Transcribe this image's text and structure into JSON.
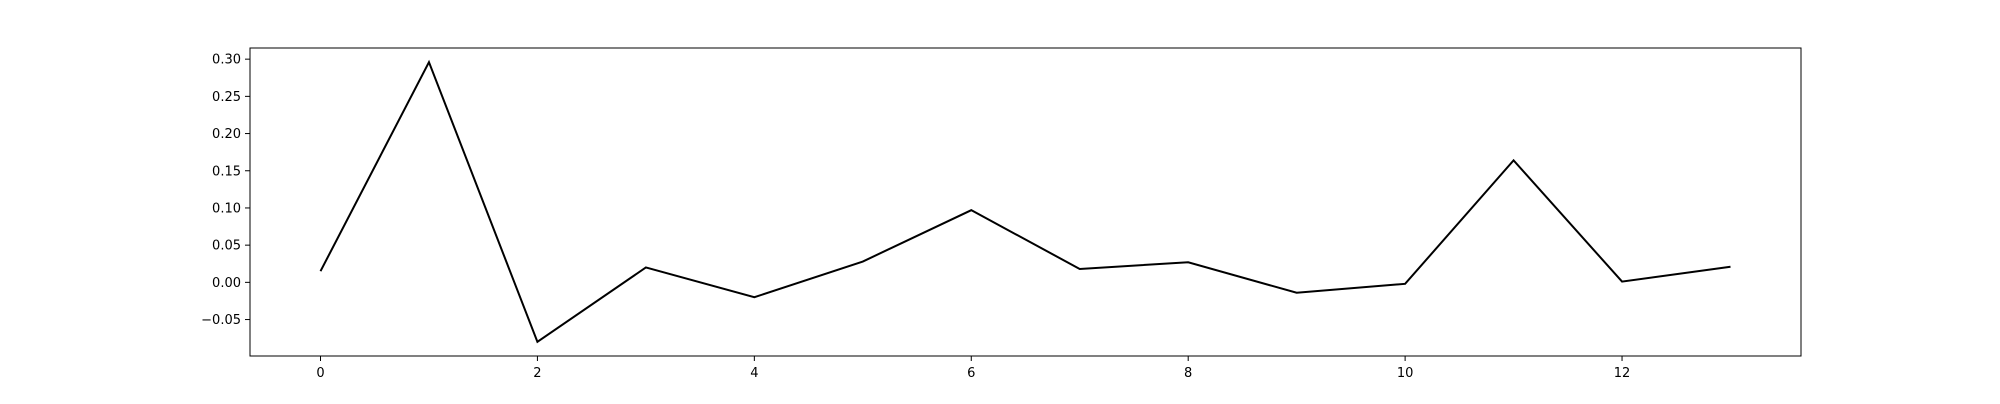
{
  "chart_data": {
    "type": "line",
    "title": "",
    "xlabel": "",
    "ylabel": "",
    "grid": false,
    "legend": "none",
    "xlim": [
      -0.65,
      13.65
    ],
    "ylim": [
      -0.099,
      0.315
    ],
    "xticks": [
      0,
      2,
      4,
      6,
      8,
      10,
      12
    ],
    "xtick_labels": [
      "0",
      "2",
      "4",
      "6",
      "8",
      "10",
      "12"
    ],
    "yticks": [
      -0.05,
      0.0,
      0.05,
      0.1,
      0.15,
      0.2,
      0.25,
      0.3
    ],
    "ytick_labels": [
      "−0.05",
      "0.00",
      "0.05",
      "0.10",
      "0.15",
      "0.20",
      "0.25",
      "0.30"
    ],
    "series": [
      {
        "color": "#000000",
        "x": [
          0,
          1,
          2,
          3,
          4,
          5,
          6,
          7,
          8,
          9,
          10,
          11,
          12,
          13
        ],
        "values": [
          0.015,
          0.296,
          -0.08,
          0.02,
          -0.02,
          0.028,
          0.097,
          0.018,
          0.027,
          -0.014,
          -0.002,
          0.164,
          0.001,
          0.021
        ]
      }
    ]
  }
}
